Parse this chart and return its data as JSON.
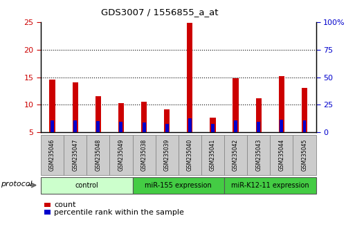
{
  "title": "GDS3007 / 1556855_a_at",
  "samples": [
    "GSM235046",
    "GSM235047",
    "GSM235048",
    "GSM235049",
    "GSM235038",
    "GSM235039",
    "GSM235040",
    "GSM235041",
    "GSM235042",
    "GSM235043",
    "GSM235044",
    "GSM235045"
  ],
  "count_values": [
    14.5,
    14.1,
    11.5,
    10.3,
    10.6,
    9.2,
    24.8,
    7.6,
    14.8,
    11.2,
    15.2,
    13.1
  ],
  "percentile_values": [
    10.8,
    10.5,
    10.0,
    9.6,
    8.9,
    7.6,
    12.9,
    7.5,
    10.5,
    9.7,
    11.1,
    10.5
  ],
  "bar_bottom": 5.0,
  "ylim_left": [
    5,
    25
  ],
  "ylim_right": [
    0,
    100
  ],
  "yticks_left": [
    5,
    10,
    15,
    20,
    25
  ],
  "yticks_right": [
    0,
    25,
    50,
    75,
    100
  ],
  "yticklabels_right": [
    "0",
    "25",
    "50",
    "75",
    "100%"
  ],
  "left_tick_color": "#cc0000",
  "right_tick_color": "#0000cc",
  "bar_color_count": "#cc0000",
  "bar_color_percentile": "#0000cc",
  "group_defs": [
    {
      "start": 0,
      "end": 3,
      "label": "control",
      "color": "#ccffcc"
    },
    {
      "start": 4,
      "end": 7,
      "label": "miR-155 expression",
      "color": "#44cc44"
    },
    {
      "start": 8,
      "end": 11,
      "label": "miR-K12-11 expression",
      "color": "#44cc44"
    }
  ],
  "protocol_label": "protocol",
  "legend_count_label": "count",
  "legend_percentile_label": "percentile rank within the sample",
  "bar_width": 0.25,
  "percentile_bar_width": 0.15
}
